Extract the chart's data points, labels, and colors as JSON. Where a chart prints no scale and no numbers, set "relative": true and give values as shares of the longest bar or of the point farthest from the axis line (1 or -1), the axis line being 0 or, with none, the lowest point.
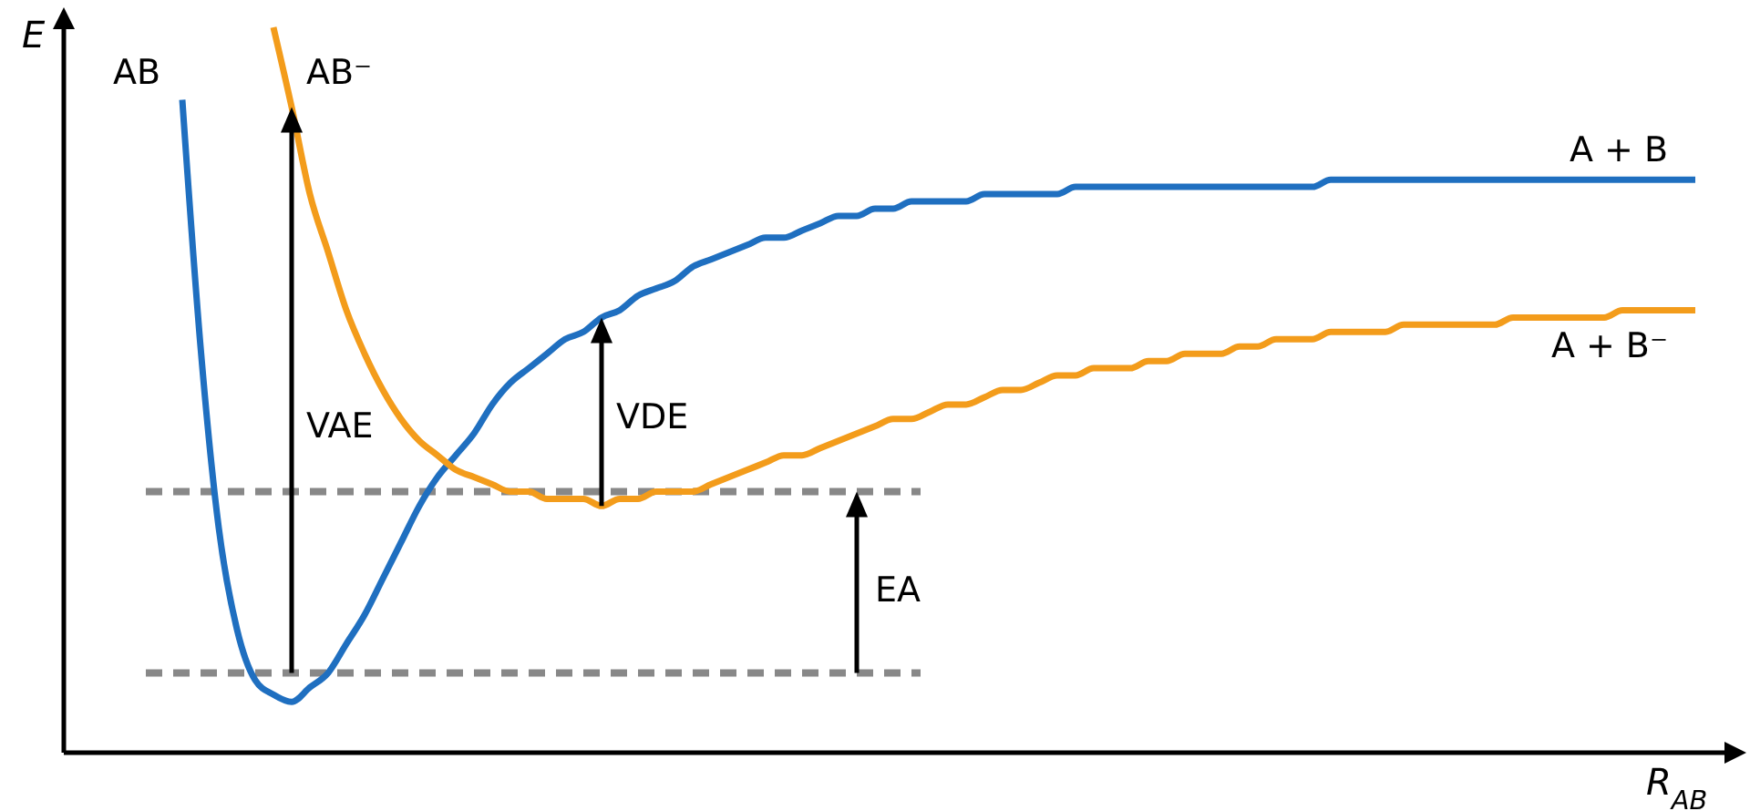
{
  "chart_data": {
    "type": "line",
    "relative": true,
    "xlabel": "R$_{AB}$",
    "ylabel": "E",
    "categories": [
      null,
      null,
      null,
      null,
      null,
      null,
      null,
      null,
      null,
      null,
      null,
      null,
      null,
      null,
      null,
      null,
      null,
      null,
      null,
      null,
      null,
      null,
      null,
      null,
      null,
      null,
      null,
      null,
      null,
      null,
      null,
      null,
      null,
      null,
      null,
      null,
      null,
      null,
      null,
      null,
      null,
      null,
      null,
      null,
      null,
      null,
      null,
      null,
      null,
      null,
      null,
      null,
      null,
      null,
      null,
      null,
      null,
      null,
      null,
      null,
      null,
      null,
      null,
      null,
      null,
      null,
      null,
      null,
      null,
      null,
      null,
      null,
      null,
      null,
      null,
      null,
      null,
      null,
      null,
      null,
      null,
      null,
      null,
      null
    ],
    "series": [
      {
        "name": "AB",
        "color": "#1f6fc0",
        "values": [
          0.9,
          0.56,
          0.31,
          0.17,
          0.1,
          0.08,
          0.07,
          0.09,
          0.11,
          0.15,
          0.19,
          0.24,
          0.29,
          0.34,
          0.38,
          0.41,
          0.44,
          0.48,
          0.51,
          0.53,
          0.55,
          0.57,
          0.58,
          0.6,
          0.61,
          0.63,
          0.64,
          0.65,
          0.67,
          0.68,
          0.69,
          0.7,
          0.71,
          0.71,
          0.72,
          0.73,
          0.74,
          0.74,
          0.75,
          0.75,
          0.76,
          0.76,
          0.76,
          0.76,
          0.77,
          0.77,
          0.77,
          0.77,
          0.77,
          0.78,
          0.78,
          0.78,
          0.78,
          0.78,
          0.78,
          0.78,
          0.78,
          0.78,
          0.78,
          0.78,
          0.78,
          0.78,
          0.78,
          0.79,
          0.79,
          0.79,
          0.79,
          0.79,
          0.79,
          0.79,
          0.79,
          0.79,
          0.79,
          0.79,
          0.79,
          0.79,
          0.79,
          0.79,
          0.79,
          0.79,
          0.79,
          0.79,
          0.79,
          0.79
        ]
      },
      {
        "name": "AB⁻",
        "color": "#f39c1b",
        "values": [
          null,
          null,
          null,
          null,
          null,
          1.0,
          0.89,
          0.77,
          0.69,
          0.61,
          0.55,
          0.5,
          0.46,
          0.43,
          0.41,
          0.39,
          0.38,
          0.37,
          0.36,
          0.36,
          0.35,
          0.35,
          0.35,
          0.34,
          0.35,
          0.35,
          0.36,
          0.36,
          0.36,
          0.37,
          0.38,
          0.39,
          0.4,
          0.41,
          0.41,
          0.42,
          0.43,
          0.44,
          0.45,
          0.46,
          0.46,
          0.47,
          0.48,
          0.48,
          0.49,
          0.5,
          0.5,
          0.51,
          0.52,
          0.52,
          0.53,
          0.53,
          0.53,
          0.54,
          0.54,
          0.55,
          0.55,
          0.55,
          0.56,
          0.56,
          0.57,
          0.57,
          0.57,
          0.58,
          0.58,
          0.58,
          0.58,
          0.59,
          0.59,
          0.59,
          0.59,
          0.59,
          0.59,
          0.6,
          0.6,
          0.6,
          0.6,
          0.6,
          0.6,
          0.61,
          0.61,
          0.61,
          0.61,
          0.61
        ]
      }
    ],
    "ref_lines": [
      {
        "axis": "y",
        "value": 0.36,
        "color": "#888888",
        "line_style": "dashed"
      },
      {
        "axis": "y",
        "value": 0.11,
        "color": "#888888",
        "line_style": "dashed"
      }
    ],
    "annotations": [
      "VAE",
      "VDE",
      "EA",
      {
        "text": "A + B",
        "y": 0.79
      },
      {
        "text": "A + B⁻",
        "y": 0.61
      }
    ]
  }
}
